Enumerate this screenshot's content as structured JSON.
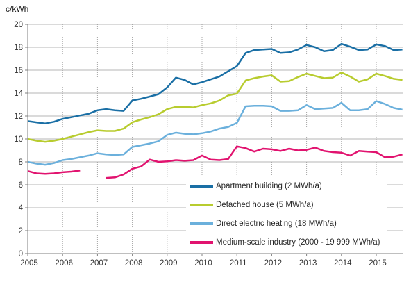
{
  "chart_data": {
    "type": "line",
    "title": "",
    "ylabel": "c/kWh",
    "xlabel": "",
    "ylim": [
      0,
      20
    ],
    "ytick_step": 2,
    "yticks": [
      0,
      2,
      4,
      6,
      8,
      10,
      12,
      14,
      16,
      18,
      20
    ],
    "xticks": [
      2005,
      2006,
      2007,
      2008,
      2009,
      2010,
      2011,
      2012,
      2013,
      2014,
      2015
    ],
    "x_unit": "year, quarterly points",
    "x": [
      2005,
      2005.25,
      2005.5,
      2005.75,
      2006,
      2006.25,
      2006.5,
      2006.75,
      2007,
      2007.25,
      2007.5,
      2007.75,
      2008,
      2008.25,
      2008.5,
      2008.75,
      2009,
      2009.25,
      2009.5,
      2009.75,
      2010,
      2010.25,
      2010.5,
      2010.75,
      2011,
      2011.25,
      2011.5,
      2011.75,
      2012,
      2012.25,
      2012.5,
      2012.75,
      2013,
      2013.25,
      2013.5,
      2013.75,
      2014,
      2014.25,
      2014.5,
      2014.75,
      2015,
      2015.25,
      2015.5,
      2015.75
    ],
    "grid": {
      "horizontal": "solid",
      "vertical": "dotted"
    },
    "grid_color": "#b4b4b4",
    "grid_color_vertical": "#a3a3a3",
    "axis_color": "#7f7f7f",
    "text_color": "#333333",
    "legend_position": "inside-bottom",
    "series": [
      {
        "id": "apartment-building",
        "name": "Apartment building (2 MWh/a)",
        "color": "#1a6fa5",
        "values": [
          11.55,
          11.45,
          11.35,
          11.5,
          11.75,
          11.9,
          12.05,
          12.2,
          12.5,
          12.6,
          12.5,
          12.45,
          13.35,
          13.5,
          13.7,
          13.9,
          14.5,
          15.35,
          15.15,
          14.75,
          14.95,
          15.2,
          15.45,
          15.9,
          16.35,
          17.5,
          17.75,
          17.8,
          17.85,
          17.5,
          17.55,
          17.8,
          18.2,
          18.0,
          17.65,
          17.75,
          18.3,
          18.05,
          17.75,
          17.8,
          18.25,
          18.1,
          17.75,
          17.8
        ]
      },
      {
        "id": "detached-house",
        "name": "Detached house (5 MWh/a)",
        "color": "#b8cc2f",
        "values": [
          10.0,
          9.85,
          9.75,
          9.85,
          10.0,
          10.2,
          10.4,
          10.6,
          10.75,
          10.7,
          10.7,
          10.9,
          11.45,
          11.7,
          11.9,
          12.15,
          12.6,
          12.8,
          12.8,
          12.75,
          12.95,
          13.1,
          13.35,
          13.8,
          13.95,
          15.1,
          15.3,
          15.45,
          15.55,
          15.0,
          15.05,
          15.4,
          15.7,
          15.5,
          15.3,
          15.35,
          15.8,
          15.45,
          15.0,
          15.2,
          15.7,
          15.5,
          15.25,
          15.15
        ]
      },
      {
        "id": "direct-electric-heating",
        "name": "Direct electric heating (18 MWh/a)",
        "color": "#6bb0dc",
        "values": [
          8.0,
          7.85,
          7.75,
          7.9,
          8.15,
          8.25,
          8.4,
          8.55,
          8.75,
          8.65,
          8.6,
          8.65,
          9.3,
          9.45,
          9.6,
          9.8,
          10.35,
          10.55,
          10.45,
          10.4,
          10.5,
          10.65,
          10.9,
          11.05,
          11.4,
          12.85,
          12.9,
          12.9,
          12.85,
          12.45,
          12.45,
          12.5,
          12.95,
          12.6,
          12.65,
          12.7,
          13.15,
          12.5,
          12.5,
          12.6,
          13.3,
          13.05,
          12.7,
          12.55
        ]
      },
      {
        "id": "medium-scale-industry",
        "name": "Medium-scale industry (2000 - 19 999 MWh/a)",
        "color": "#e1136f",
        "values": [
          7.2,
          7.0,
          6.95,
          7.0,
          7.1,
          7.15,
          7.25,
          null,
          null,
          6.6,
          6.65,
          6.9,
          7.4,
          7.6,
          8.2,
          8.0,
          8.05,
          8.15,
          8.1,
          8.15,
          8.55,
          8.2,
          8.15,
          8.25,
          9.35,
          9.2,
          8.9,
          9.15,
          9.1,
          8.95,
          9.15,
          9.0,
          9.05,
          9.25,
          8.95,
          8.85,
          8.8,
          8.55,
          8.95,
          8.9,
          8.85,
          8.4,
          8.45,
          8.65
        ]
      }
    ]
  }
}
